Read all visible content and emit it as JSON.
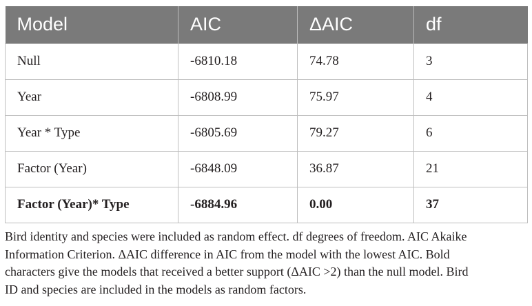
{
  "table": {
    "headers": [
      "Model",
      "AIC",
      "ΔAIC",
      "df"
    ],
    "rows": [
      {
        "model": "Null",
        "aic": "-6810.18",
        "delta_aic": "74.78",
        "df": "3"
      },
      {
        "model": "Year",
        "aic": "-6808.99",
        "delta_aic": "75.97",
        "df": "4"
      },
      {
        "model": "Year * Type",
        "aic": "-6805.69",
        "delta_aic": "79.27",
        "df": "6"
      },
      {
        "model": "Factor (Year)",
        "aic": "-6848.09",
        "delta_aic": "36.87",
        "df": "21"
      },
      {
        "model": "Factor (Year)* Type",
        "aic": "-6884.96",
        "delta_aic": "0.00",
        "df": "37"
      }
    ]
  },
  "footnote": {
    "line1": "Bird identity and species were included as random effect. df degrees of freedom. AIC Akaike",
    "line2": "Information Criterion. ΔAIC difference in AIC from the model with the lowest AIC. Bold",
    "line3": "characters give the models that received a better support (ΔAIC >2) than the null model. Bird",
    "line4": "ID and species are included in the models as random factors."
  },
  "colors": {
    "header_background": "#7a7a7a",
    "header_text": "#ffffff",
    "border": "#bdbdbd",
    "text": "#231f20"
  }
}
